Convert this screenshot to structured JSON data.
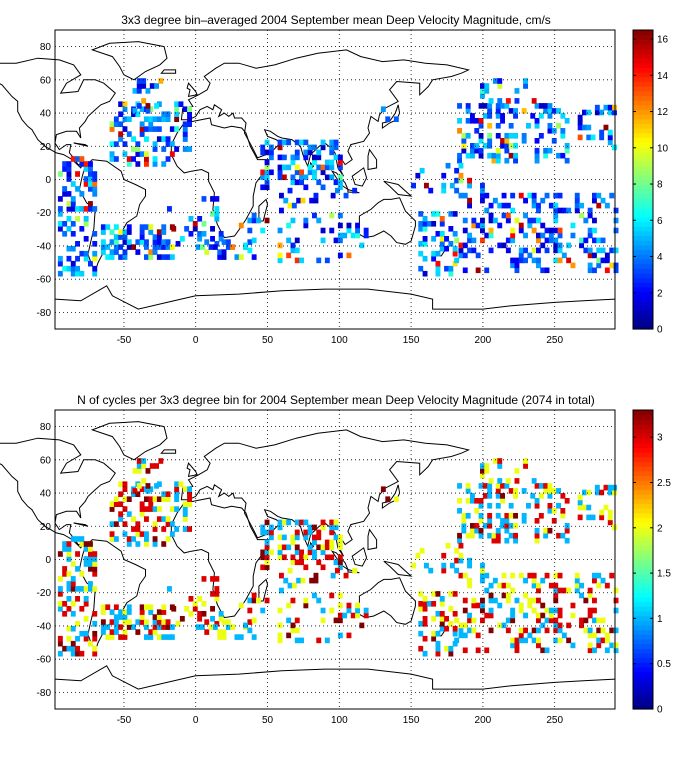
{
  "chart_data": [
    {
      "type": "heatmap",
      "title": "3x3 degree bin–averaged 2004 September mean Deep Velocity Magnitude, cm/s",
      "xlim": [
        -98,
        292
      ],
      "ylim": [
        -90,
        90
      ],
      "x_ticks": [
        "-50",
        "0",
        "50",
        "100",
        "150",
        "200",
        "250"
      ],
      "y_ticks": [
        "80",
        "60",
        "40",
        "20",
        "0",
        "-20",
        "-40",
        "-60",
        "-80"
      ],
      "grid": true,
      "colorbar": {
        "min": 0,
        "max": 16.5,
        "ticks": [
          "16",
          "14",
          "12",
          "10",
          "8",
          "6",
          "4",
          "2",
          "0"
        ],
        "colormap": "jet"
      },
      "bin_size_deg": 3
    },
    {
      "type": "heatmap",
      "title": "N of cycles per 3x3 degree bin for 2004 September mean Deep Velocity Magnitude (2074 in total)",
      "xlim": [
        -98,
        292
      ],
      "ylim": [
        -90,
        90
      ],
      "x_ticks": [
        "-50",
        "0",
        "50",
        "100",
        "150",
        "200",
        "250"
      ],
      "y_ticks": [
        "80",
        "60",
        "40",
        "20",
        "0",
        "-20",
        "-40",
        "-60",
        "-80"
      ],
      "grid": true,
      "colorbar": {
        "min": 0,
        "max": 3.3,
        "ticks": [
          "3",
          "2.5",
          "2",
          "1.5",
          "1",
          "0.5",
          "0"
        ],
        "colormap": "jet"
      },
      "bin_size_deg": 3
    }
  ]
}
